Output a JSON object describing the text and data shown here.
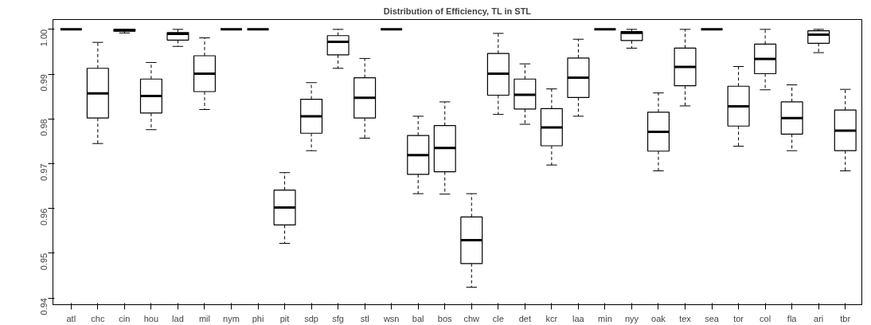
{
  "chart_data": {
    "type": "box",
    "title": "Distribution of Efficiency, TL in STL",
    "categories": [
      "atl",
      "chc",
      "cin",
      "hou",
      "lad",
      "mil",
      "nym",
      "phi",
      "pit",
      "sdp",
      "sfg",
      "stl",
      "wsn",
      "bal",
      "bos",
      "chw",
      "cle",
      "det",
      "kcr",
      "laa",
      "min",
      "nyy",
      "oak",
      "tex",
      "sea",
      "tor",
      "col",
      "fla",
      "ari",
      "tbr"
    ],
    "boxes": [
      {
        "low": 1.0,
        "q1": 1.0,
        "median": 1.0,
        "q3": 1.0,
        "high": 1.0
      },
      {
        "low": 0.9745,
        "q1": 0.9802,
        "median": 0.9857,
        "q3": 0.9913,
        "high": 0.9971
      },
      {
        "low": 0.9992,
        "q1": 0.9996,
        "median": 0.9998,
        "q3": 1.0,
        "high": 1.0
      },
      {
        "low": 0.9776,
        "q1": 0.9813,
        "median": 0.9851,
        "q3": 0.9889,
        "high": 0.9926
      },
      {
        "low": 0.9962,
        "q1": 0.9976,
        "median": 0.999,
        "q3": 0.9993,
        "high": 1.0
      },
      {
        "low": 0.9821,
        "q1": 0.9861,
        "median": 0.9901,
        "q3": 0.9941,
        "high": 0.9981
      },
      {
        "low": 1.0,
        "q1": 1.0,
        "median": 1.0,
        "q3": 1.0,
        "high": 1.0
      },
      {
        "low": 1.0,
        "q1": 1.0,
        "median": 1.0,
        "q3": 1.0,
        "high": 1.0
      },
      {
        "low": 0.9522,
        "q1": 0.9563,
        "median": 0.9602,
        "q3": 0.9641,
        "high": 0.968
      },
      {
        "low": 0.9729,
        "q1": 0.9768,
        "median": 0.9806,
        "q3": 0.9844,
        "high": 0.9881
      },
      {
        "low": 0.9913,
        "q1": 0.9943,
        "median": 0.9972,
        "q3": 0.9986,
        "high": 1.0
      },
      {
        "low": 0.9757,
        "q1": 0.9802,
        "median": 0.9847,
        "q3": 0.9892,
        "high": 0.9935
      },
      {
        "low": 1.0,
        "q1": 1.0,
        "median": 1.0,
        "q3": 1.0,
        "high": 1.0
      },
      {
        "low": 0.9633,
        "q1": 0.9676,
        "median": 0.9719,
        "q3": 0.9763,
        "high": 0.9806
      },
      {
        "low": 0.9632,
        "q1": 0.9682,
        "median": 0.9735,
        "q3": 0.9785,
        "high": 0.9838
      },
      {
        "low": 0.9424,
        "q1": 0.9477,
        "median": 0.9529,
        "q3": 0.9581,
        "high": 0.9633
      },
      {
        "low": 0.981,
        "q1": 0.9853,
        "median": 0.9901,
        "q3": 0.9946,
        "high": 0.9991
      },
      {
        "low": 0.9788,
        "q1": 0.9822,
        "median": 0.9854,
        "q3": 0.9889,
        "high": 0.9923
      },
      {
        "low": 0.9697,
        "q1": 0.974,
        "median": 0.9781,
        "q3": 0.9823,
        "high": 0.9867
      },
      {
        "low": 0.9806,
        "q1": 0.9848,
        "median": 0.9892,
        "q3": 0.9936,
        "high": 0.9978
      },
      {
        "low": 1.0,
        "q1": 1.0,
        "median": 1.0,
        "q3": 1.0,
        "high": 1.0
      },
      {
        "low": 0.9958,
        "q1": 0.9975,
        "median": 0.9992,
        "q3": 0.9995,
        "high": 1.0
      },
      {
        "low": 0.9684,
        "q1": 0.9728,
        "median": 0.9771,
        "q3": 0.9815,
        "high": 0.9858
      },
      {
        "low": 0.9829,
        "q1": 0.9874,
        "median": 0.9916,
        "q3": 0.9958,
        "high": 1.0
      },
      {
        "low": 1.0,
        "q1": 1.0,
        "median": 1.0,
        "q3": 1.0,
        "high": 1.0
      },
      {
        "low": 0.9739,
        "q1": 0.9784,
        "median": 0.9828,
        "q3": 0.9873,
        "high": 0.9917
      },
      {
        "low": 0.9865,
        "q1": 0.9901,
        "median": 0.9934,
        "q3": 0.9967,
        "high": 1.0
      },
      {
        "low": 0.9729,
        "q1": 0.9766,
        "median": 0.9802,
        "q3": 0.9838,
        "high": 0.9876
      },
      {
        "low": 0.9948,
        "q1": 0.9969,
        "median": 0.9988,
        "q3": 0.9997,
        "high": 1.0
      },
      {
        "low": 0.9684,
        "q1": 0.9729,
        "median": 0.9774,
        "q3": 0.982,
        "high": 0.9866
      }
    ],
    "ylim": [
      0.9385,
      1.0022
    ],
    "yticks": [
      {
        "value": 0.94,
        "label": "0.94"
      },
      {
        "value": 0.95,
        "label": "0.95"
      },
      {
        "value": 0.96,
        "label": "0.96"
      },
      {
        "value": 0.97,
        "label": "0.97"
      },
      {
        "value": 0.98,
        "label": "0.98"
      },
      {
        "value": 0.99,
        "label": "0.99"
      },
      {
        "value": 1.0,
        "label": "1.00"
      }
    ],
    "grid": false
  }
}
